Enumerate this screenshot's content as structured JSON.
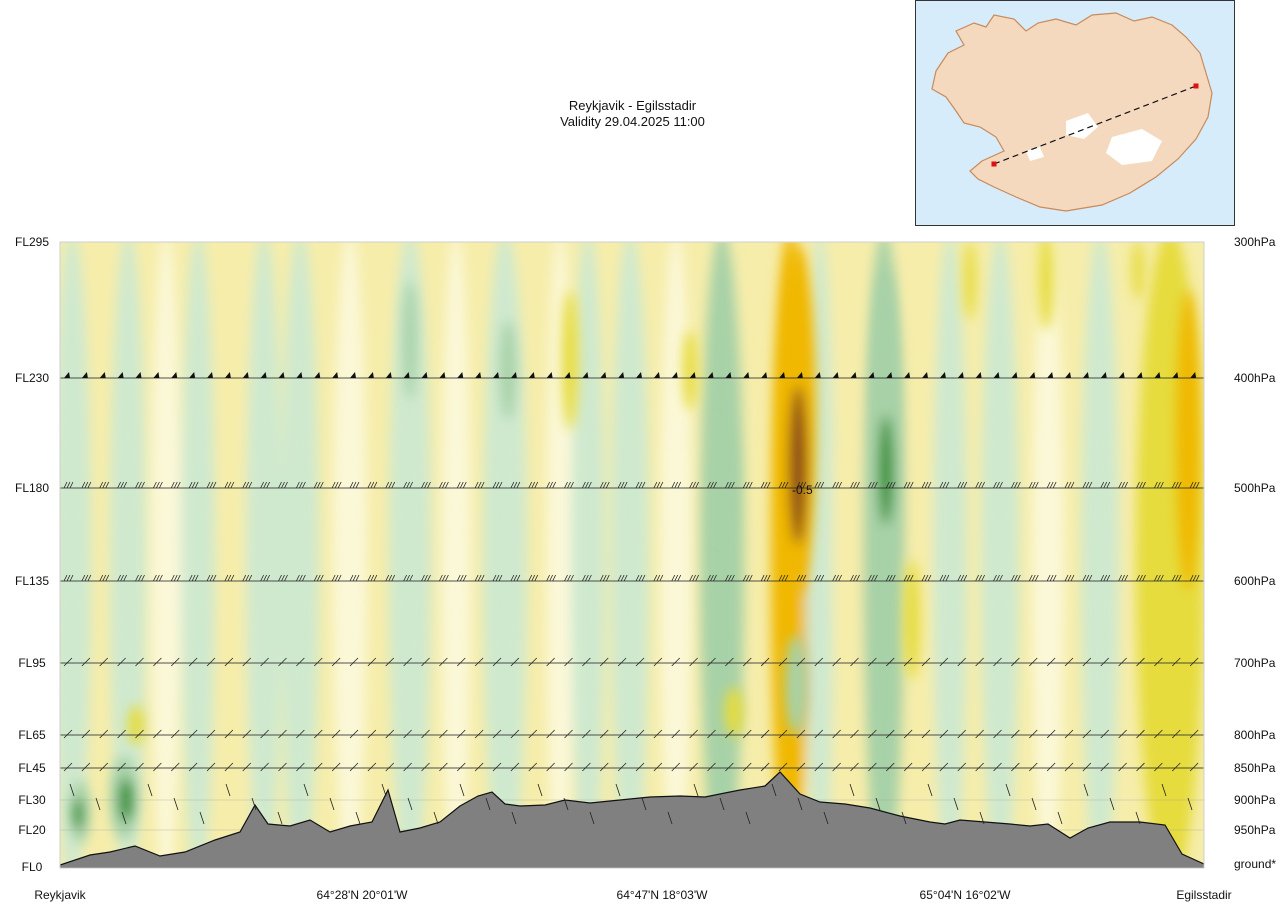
{
  "chart_data": {
    "type": "heatmap",
    "title": "Reykjavik - Egilsstadir",
    "subtitle": "Validity 29.04.2025 11:00",
    "left_axis_ticks": [
      "FL295",
      "FL230",
      "FL180",
      "FL135",
      "FL95",
      "FL65",
      "FL45",
      "FL30",
      "FL20",
      "FL0"
    ],
    "right_axis_ticks": [
      "300hPa",
      "400hPa",
      "500hPa",
      "600hPa",
      "700hPa",
      "800hPa",
      "850hPa",
      "900hPa",
      "950hPa",
      "ground*"
    ],
    "x_tick_labels": [
      "Reykjavik",
      "64°28'N 20°01'W",
      "64°47'N 18°03'W",
      "65°04'N 16°02'W",
      "Egilsstadir"
    ],
    "annotations": [
      "-0.5"
    ],
    "route": {
      "start": "Reykjavik",
      "end": "Egilsstadir"
    },
    "colors": {
      "strong_warm": "#8a4a12",
      "warm_orange": "#f0b800",
      "warm_yellow": "#e6dc3c",
      "light_yellow": "#f6edaa",
      "pale": "#fbf8d8",
      "light_green": "#cfe9cf",
      "mid_green": "#a7d1a7",
      "dark_green": "#1f8a1f",
      "terrain": "#808080"
    }
  }
}
